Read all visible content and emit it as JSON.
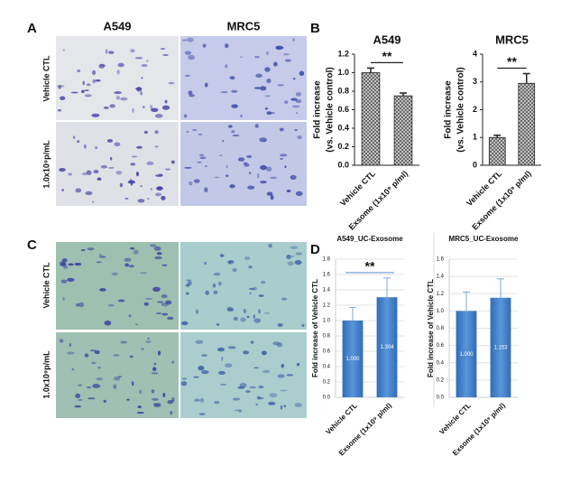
{
  "panel_labels": [
    "A",
    "B",
    "C",
    "D"
  ],
  "panel_a": {
    "columns": [
      "A549",
      "MRC5"
    ],
    "rows": [
      "Vehicle CTL",
      "1.0x10⁹p/mL"
    ]
  },
  "panel_c": {
    "rows": [
      "Vehicle CTL",
      "1.0x10⁹p/mL"
    ]
  },
  "chart_data": [
    {
      "type": "bar",
      "title": "A549",
      "ylabel": [
        "Fold increase",
        "(vs. Vehicle control)"
      ],
      "categories": [
        "Vehicle CTL",
        "Exsome (1x10⁹ p/ml)"
      ],
      "values": [
        1.0,
        0.75
      ],
      "errors": [
        0.05,
        0.03
      ],
      "ylim": [
        0,
        1.2
      ],
      "yticks": [
        {
          "value": 0,
          "label": "0.0"
        },
        0.2,
        0.4,
        0.6,
        0.8,
        {
          "value": 1,
          "label": "1.0"
        },
        1.2
      ],
      "annotation": "**",
      "color": "#9a9a9a",
      "grid": false
    },
    {
      "type": "bar",
      "title": "MRC5",
      "ylabel": [
        "Fold increase",
        "(vs. Vehicle control)"
      ],
      "categories": [
        "Vehicle CTL",
        "Exsome (1x10⁹ p/ml)"
      ],
      "values": [
        1.0,
        2.95
      ],
      "errors": [
        0.08,
        0.35
      ],
      "ylim": [
        0,
        4
      ],
      "yticks": [
        0,
        1,
        2,
        3,
        4
      ],
      "annotation": "**",
      "color": "#9a9a9a",
      "grid": false
    },
    {
      "type": "bar",
      "title": "A549_UC-Exosome",
      "ylabel": [
        "Fold increase of Vehicle CTL"
      ],
      "categories": [
        "Vehicle CTL",
        "Exsome (1x10⁹ p/ml)"
      ],
      "values": [
        1.0,
        1.304
      ],
      "value_labels": [
        "1.000",
        "1.304"
      ],
      "errors": [
        0.17,
        0.25
      ],
      "ylim": [
        0,
        1.8
      ],
      "yticks": [
        {
          "value": 0,
          "label": "0.0"
        },
        0.2,
        0.4,
        0.6,
        0.8,
        {
          "value": 1,
          "label": "1.0"
        },
        1.2,
        1.4,
        1.6,
        1.8
      ],
      "annotation": "**",
      "color": "#3b78c4",
      "grid": true
    },
    {
      "type": "bar",
      "title": "MRC5_UC-Exosome",
      "ylabel": [
        "Fold increase of Vehicle CTL"
      ],
      "categories": [
        "Vehicle CTL",
        "Exsome (1x10⁹ p/ml)"
      ],
      "values": [
        1.0,
        1.153
      ],
      "value_labels": [
        "1.000",
        "1.153"
      ],
      "errors": [
        0.22,
        0.22
      ],
      "ylim": [
        0,
        1.6
      ],
      "yticks": [
        {
          "value": 0,
          "label": "0.0"
        },
        0.2,
        0.4,
        0.6,
        0.8,
        {
          "value": 1,
          "label": "1.0"
        },
        1.2,
        1.4,
        1.6
      ],
      "color": "#3b78c4",
      "grid": true
    }
  ]
}
